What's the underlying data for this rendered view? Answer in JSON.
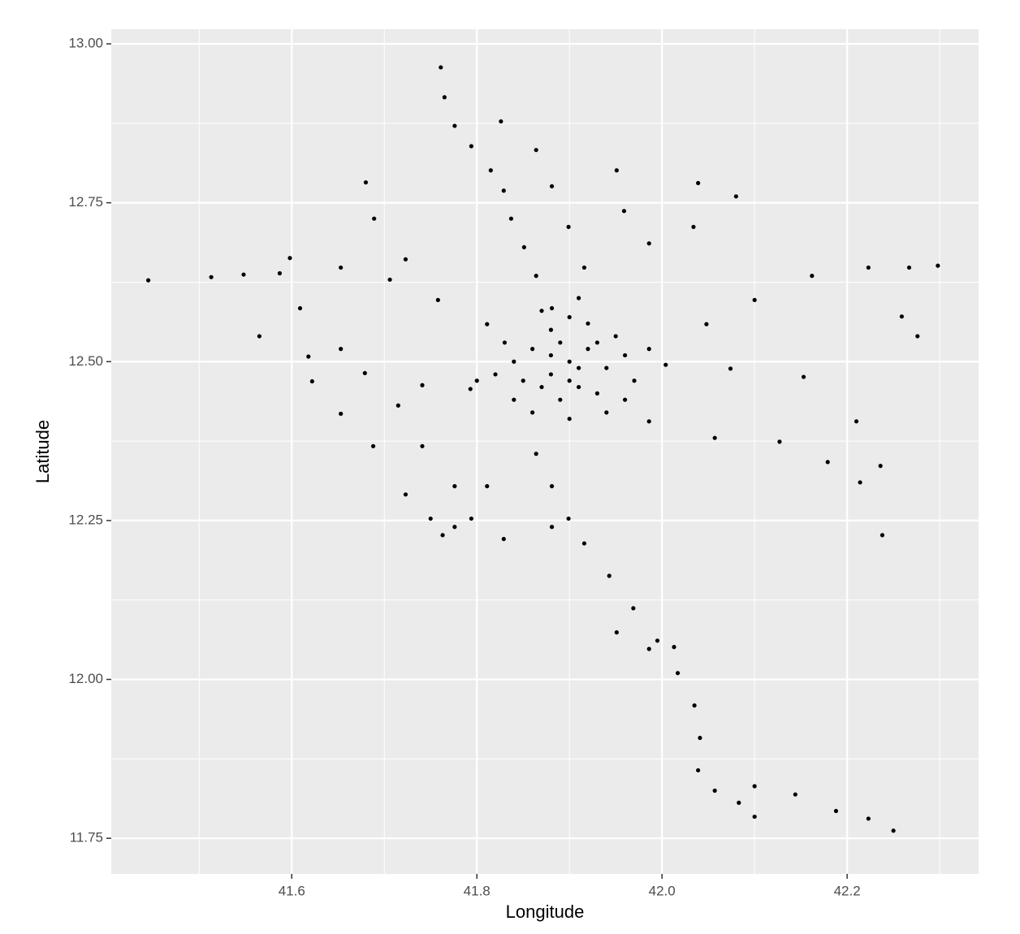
{
  "chart_data": {
    "type": "scatter",
    "x_label": "Longitude",
    "y_label": "Latitude",
    "color": "#000000",
    "grid": true,
    "minor_grid": true,
    "xlim": [
      41.405,
      42.342
    ],
    "ylim": [
      11.694,
      13.023
    ],
    "xticks": [
      41.6,
      41.8,
      {
        "value": 42.0,
        "label": "42.0"
      },
      42.2
    ],
    "yticks": [
      11.75,
      {
        "value": 12.0,
        "label": "12.00"
      },
      12.25,
      {
        "value": 12.5,
        "label": "12.50"
      },
      12.75,
      {
        "value": 13.0,
        "label": "13.00"
      }
    ],
    "x": [
      41.445,
      41.513,
      41.548,
      41.587,
      41.761,
      41.765,
      41.776,
      41.794,
      41.815,
      41.829,
      41.837,
      41.851,
      41.864,
      41.881,
      41.598,
      41.653,
      41.706,
      41.758,
      41.811,
      41.609,
      41.653,
      41.715,
      41.565,
      41.618,
      41.679,
      41.741,
      41.793,
      41.622,
      41.653,
      41.688,
      41.723,
      41.75,
      41.763,
      41.741,
      41.776,
      41.794,
      41.811,
      41.864,
      41.881,
      41.899,
      41.916,
      41.943,
      41.969,
      41.995,
      42.017,
      42.035,
      42.041,
      42.039,
      42.057,
      42.083,
      42.1,
      42.1,
      42.144,
      42.188,
      42.223,
      42.25,
      41.776,
      41.829,
      41.881,
      41.951,
      41.986,
      42.013,
      41.986,
      42.048,
      42.1,
      42.162,
      42.223,
      42.259,
      42.276,
      42.267,
      42.298,
      41.986,
      42.057,
      42.127,
      42.179,
      42.214,
      42.236,
      42.004,
      42.074,
      42.153,
      42.21,
      42.238,
      42.039,
      42.08,
      41.951,
      41.959,
      41.986,
      42.034,
      41.826,
      41.864,
      41.881,
      41.899,
      41.916,
      41.68,
      41.689,
      41.723,
      41.84,
      41.86,
      41.88,
      41.9,
      41.92,
      41.94,
      41.96,
      41.87,
      41.89,
      41.91,
      41.93,
      41.85,
      41.82,
      41.8,
      41.88,
      41.9,
      41.92,
      41.95,
      41.97,
      41.86,
      41.9,
      41.94,
      41.83,
      41.87,
      41.91,
      41.89,
      41.91,
      41.93,
      41.88,
      41.9,
      41.84,
      41.96
    ],
    "y": [
      12.628,
      12.633,
      12.637,
      12.639,
      12.963,
      12.916,
      12.871,
      12.839,
      12.801,
      12.769,
      12.725,
      12.68,
      12.635,
      12.584,
      12.663,
      12.648,
      12.629,
      12.597,
      12.559,
      12.584,
      12.52,
      12.431,
      12.54,
      12.508,
      12.482,
      12.463,
      12.457,
      12.469,
      12.418,
      12.367,
      12.291,
      12.253,
      12.227,
      12.367,
      12.304,
      12.253,
      12.304,
      12.355,
      12.304,
      12.253,
      12.214,
      12.163,
      12.112,
      12.061,
      12.01,
      11.959,
      11.908,
      11.857,
      11.825,
      11.806,
      11.784,
      11.832,
      11.819,
      11.793,
      11.781,
      11.762,
      12.24,
      12.221,
      12.24,
      12.074,
      12.048,
      12.051,
      12.52,
      12.559,
      12.597,
      12.635,
      12.648,
      12.571,
      12.54,
      12.648,
      12.651,
      12.406,
      12.38,
      12.374,
      12.342,
      12.31,
      12.336,
      12.495,
      12.489,
      12.476,
      12.406,
      12.227,
      12.781,
      12.76,
      12.801,
      12.737,
      12.686,
      12.712,
      12.878,
      12.833,
      12.776,
      12.712,
      12.648,
      12.782,
      12.725,
      12.661,
      12.5,
      12.52,
      12.48,
      12.5,
      12.52,
      12.49,
      12.51,
      12.46,
      12.44,
      12.46,
      12.45,
      12.47,
      12.48,
      12.47,
      12.55,
      12.57,
      12.56,
      12.54,
      12.47,
      12.42,
      12.41,
      12.42,
      12.53,
      12.58,
      12.6,
      12.53,
      12.49,
      12.53,
      12.51,
      12.47,
      12.44,
      12.44
    ]
  }
}
